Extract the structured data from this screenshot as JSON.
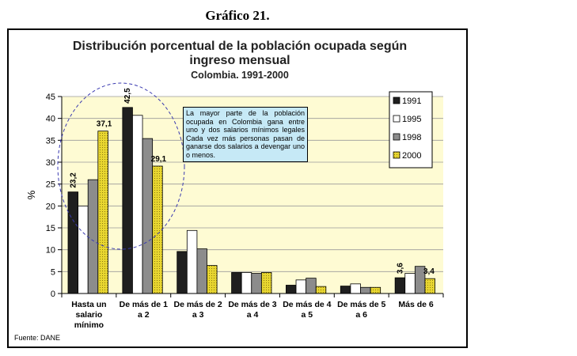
{
  "figure_label": "Gráfico 21.",
  "source": "Fuente: DANE",
  "annotation": "La mayor parte de la población ocupada en Colombia gana entre uno y dos salarios mínimos legales Cada vez más personas pasan de ganarse dos salarios a devengar uno o menos.",
  "colors": {
    "1991": "#1f1f1f",
    "1995": "#ffffff",
    "1998": "#8c8c8c",
    "2000": "#e8d630",
    "plot_background": "#fefbd3",
    "callout_background": "#c6e9f6",
    "ellipse": "#3a3ab0"
  },
  "chart_data": {
    "type": "bar",
    "title": "Distribución porcentual de la población ocupada según ingreso mensual",
    "subtitle": "Colombia.  1991-2000",
    "ylabel": "%",
    "xlabel": "",
    "ylim": [
      0,
      45
    ],
    "yticks": [
      0,
      5,
      10,
      15,
      20,
      25,
      30,
      35,
      40,
      45
    ],
    "grid": true,
    "legend_position": "top-right",
    "categories": [
      [
        "Hasta un",
        "salario",
        "mínimo"
      ],
      [
        "De más de 1",
        "a 2"
      ],
      [
        "De más de 2",
        "a 3"
      ],
      [
        "De más de 3",
        "a 4"
      ],
      [
        "De más de 4",
        "a 5"
      ],
      [
        "De más de 5",
        "a 6"
      ],
      [
        "Más de 6"
      ]
    ],
    "series": [
      {
        "name": "1991",
        "values": [
          23.2,
          42.5,
          9.6,
          4.8,
          1.9,
          1.7,
          3.6
        ]
      },
      {
        "name": "1995",
        "values": [
          20.0,
          40.7,
          14.4,
          4.8,
          3.1,
          2.2,
          4.6
        ]
      },
      {
        "name": "1998",
        "values": [
          26.0,
          35.4,
          10.2,
          4.6,
          3.5,
          1.4,
          6.2
        ]
      },
      {
        "name": "2000",
        "values": [
          37.1,
          29.1,
          6.4,
          4.8,
          1.6,
          1.4,
          3.4
        ]
      }
    ],
    "data_labels": [
      {
        "series": "1991",
        "category": 0,
        "text": "23,2",
        "vertical": true
      },
      {
        "series": "2000",
        "category": 0,
        "text": "37,1",
        "vertical": false
      },
      {
        "series": "1991",
        "category": 1,
        "text": "42,5",
        "vertical": true
      },
      {
        "series": "2000",
        "category": 1,
        "text": "29,1",
        "vertical": false
      },
      {
        "series": "1991",
        "category": 6,
        "text": "3,6",
        "vertical": true
      },
      {
        "series": "2000",
        "category": 6,
        "text": "3,4",
        "vertical": false
      }
    ]
  }
}
